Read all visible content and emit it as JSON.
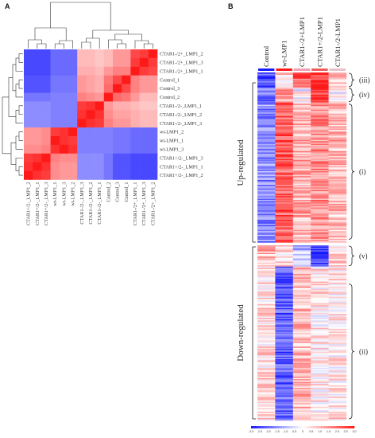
{
  "chart_data": [
    {
      "type": "heatmap",
      "panel": "A",
      "rows": [
        "CTAR1-/2+_LMP1_2",
        "CTAR1-/2+_LMP1_3",
        "CTAR1-/2+_LMP1_1",
        "Control_1",
        "Control_3",
        "Control_2",
        "CTAR1-/2-_LMP1_1",
        "CTAR1-/2-_LMP1_2",
        "CTAR1-/2-_LMP1_3",
        "wt-LMP1_2",
        "wt-LMP1_1",
        "wt-LMP1_3",
        "CTAR1+/2-_LMP1_3",
        "CTAR1+/2-_LMP1_1",
        "CTAR1+/2-_LMP1_2"
      ],
      "columns": [
        "CTAR1+/2-_LMP1_2",
        "CTAR1+/2-_LMP1_1",
        "CTAR1+/2-_LMP1_3",
        "wt-LMP1_1",
        "wt-LMP1_3",
        "wt-LMP1_2",
        "CTAR1-/2-_LMP1_3",
        "CTAR1-/2-_LMP1_2",
        "CTAR1-/2-_LMP1_1",
        "Control_2",
        "Control_3",
        "Control_1",
        "CTAR1-/2+_LMP1_1",
        "CTAR1-/2+_LMP1_3",
        "CTAR1-/2+_LMP1_2"
      ],
      "values": [
        [
          -0.8,
          -0.8,
          -0.8,
          -0.65,
          -0.65,
          -0.65,
          0.3,
          0.3,
          0.25,
          0.3,
          0.45,
          0.45,
          0.8,
          0.85,
          1.0
        ],
        [
          -0.8,
          -0.8,
          -0.8,
          -0.65,
          -0.65,
          -0.65,
          0.3,
          0.3,
          0.25,
          0.3,
          0.45,
          0.45,
          0.85,
          1.0,
          0.85
        ],
        [
          -0.8,
          -0.8,
          -0.8,
          -0.65,
          -0.65,
          -0.65,
          0.35,
          0.35,
          0.3,
          0.45,
          0.55,
          0.55,
          1.0,
          0.85,
          0.8
        ],
        [
          -0.75,
          -0.75,
          -0.75,
          -0.6,
          -0.6,
          -0.6,
          0.45,
          0.4,
          0.35,
          0.6,
          0.8,
          1.0,
          0.55,
          0.45,
          0.45
        ],
        [
          -0.75,
          -0.75,
          -0.75,
          -0.6,
          -0.6,
          -0.6,
          0.45,
          0.4,
          0.35,
          0.65,
          1.0,
          0.8,
          0.55,
          0.45,
          0.45
        ],
        [
          -0.6,
          -0.6,
          -0.6,
          -0.55,
          -0.55,
          -0.55,
          0.55,
          0.5,
          0.45,
          1.0,
          0.65,
          0.6,
          0.45,
          0.3,
          0.3
        ],
        [
          -0.5,
          -0.5,
          -0.5,
          -0.55,
          -0.55,
          -0.55,
          0.85,
          0.9,
          1.0,
          0.45,
          0.35,
          0.35,
          0.3,
          0.25,
          0.25
        ],
        [
          -0.5,
          -0.5,
          -0.5,
          -0.55,
          -0.55,
          -0.55,
          0.9,
          1.0,
          0.9,
          0.5,
          0.4,
          0.4,
          0.35,
          0.3,
          0.3
        ],
        [
          -0.5,
          -0.5,
          -0.5,
          -0.55,
          -0.55,
          -0.55,
          1.0,
          0.9,
          0.85,
          0.55,
          0.45,
          0.45,
          0.35,
          0.3,
          0.3
        ],
        [
          0.45,
          0.45,
          0.5,
          0.85,
          0.9,
          1.0,
          -0.55,
          -0.55,
          -0.55,
          -0.55,
          -0.6,
          -0.6,
          -0.65,
          -0.65,
          -0.65
        ],
        [
          0.45,
          0.45,
          0.5,
          1.0,
          0.9,
          0.85,
          -0.55,
          -0.55,
          -0.55,
          -0.55,
          -0.6,
          -0.6,
          -0.65,
          -0.65,
          -0.65
        ],
        [
          0.5,
          0.5,
          0.55,
          0.9,
          1.0,
          0.9,
          -0.55,
          -0.55,
          -0.55,
          -0.55,
          -0.6,
          -0.6,
          -0.65,
          -0.65,
          -0.65
        ],
        [
          0.85,
          0.9,
          1.0,
          0.55,
          0.5,
          0.5,
          -0.5,
          -0.5,
          -0.5,
          -0.6,
          -0.75,
          -0.75,
          -0.8,
          -0.8,
          -0.8
        ],
        [
          0.9,
          1.0,
          0.9,
          0.5,
          0.45,
          0.45,
          -0.5,
          -0.5,
          -0.5,
          -0.6,
          -0.75,
          -0.75,
          -0.8,
          -0.8,
          -0.8
        ],
        [
          1.0,
          0.9,
          0.85,
          0.5,
          0.45,
          0.45,
          -0.5,
          -0.5,
          -0.5,
          -0.6,
          -0.75,
          -0.75,
          -0.8,
          -0.8,
          -0.8
        ]
      ]
    },
    {
      "type": "heatmap",
      "panel": "B",
      "columns": [
        "Control",
        "wt-LMP1",
        "CTAR1-/2+LMP1",
        "CTAR1+/2-LMP1",
        "CTAR1-/2-LMP1"
      ],
      "row_groups": [
        {
          "label": "Up-regulated",
          "clusters": [
            {
              "label": "(iii)",
              "pattern": [
                -0.8,
                0.2,
                0.7,
                0.9,
                0.3
              ]
            },
            {
              "label": "(iv)",
              "pattern": [
                -0.6,
                0.4,
                0.0,
                0.95,
                0.0
              ]
            },
            {
              "label": "(i)",
              "pattern": [
                -0.5,
                0.7,
                0.35,
                0.5,
                0.3
              ]
            }
          ]
        },
        {
          "label": "Down-regulated",
          "clusters": [
            {
              "label": "(v)",
              "pattern": [
                0.3,
                0.15,
                -0.3,
                -0.85,
                0.2
              ]
            },
            {
              "label": "(ii)",
              "pattern": [
                0.15,
                -0.7,
                0.3,
                0.1,
                0.1
              ]
            }
          ]
        }
      ],
      "colorbar_ticks": [
        "-3.0",
        "-2.5",
        "-2.0",
        "-1.5",
        "-1.0",
        "-0.5",
        "0",
        "0.5",
        "1.0",
        "1.5",
        "2.0",
        "2.5",
        "3.0"
      ],
      "colors": {
        "low": "#1a1aff",
        "mid": "#ffffff",
        "high": "#ff1a1a"
      }
    }
  ],
  "panel_labels": {
    "a": "A",
    "b": "B"
  }
}
